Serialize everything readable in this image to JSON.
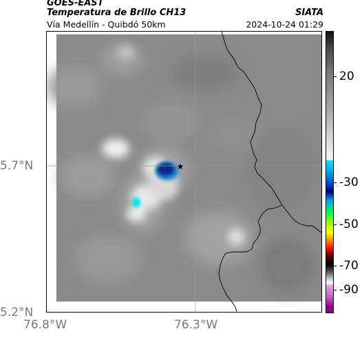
{
  "header": {
    "satellite": "GOES-EAST",
    "product": "Temperatura de Brillo CH13",
    "organization": "SIATA",
    "route": "Vía Medellín - Quibdó 50km",
    "datetime": "2024-10-24 01:29"
  },
  "axes": {
    "lat_labels": [
      "5.7°N",
      "5.2°N"
    ],
    "lon_labels": [
      "76.8°W",
      "76.3°W"
    ]
  },
  "colorbar": {
    "ticks": [
      "20",
      "-30",
      "-50",
      "-70",
      "-90"
    ]
  },
  "map": {
    "marker_icon": "star-marker-icon",
    "colors": {
      "background_gray": "#8c8c8c",
      "cold_cloud_blue": "#0a2a8a",
      "cyan_cloud": "#00e5f5",
      "border_line": "#000000"
    }
  }
}
